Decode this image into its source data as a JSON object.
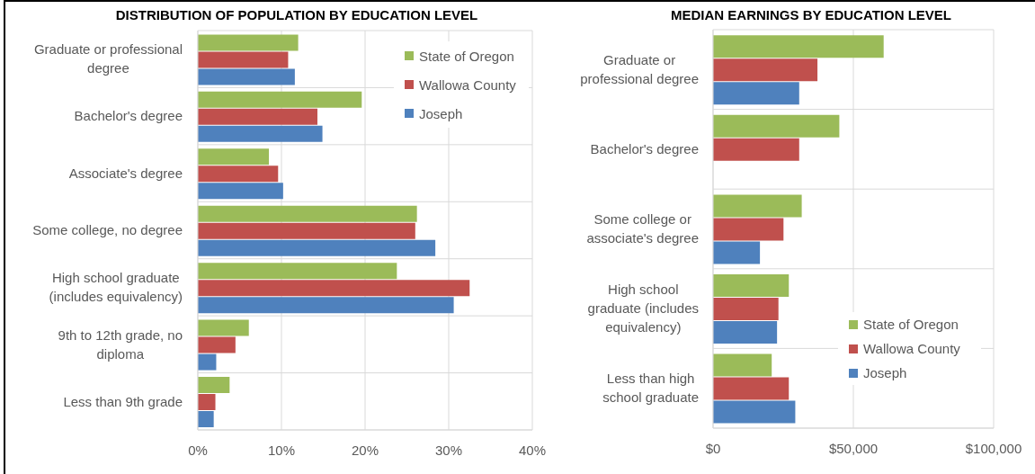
{
  "chart_data": [
    {
      "type": "bar",
      "orientation": "horizontal",
      "title": "DISTRIBUTION OF POPULATION BY EDUCATION LEVEL",
      "categories": [
        "Graduate or professional degree",
        "Bachelor's degree",
        "Associate's degree",
        "Some college, no degree",
        "High school graduate (includes equivalency)",
        "9th to 12th grade, no diploma",
        "Less than 9th grade"
      ],
      "series": [
        {
          "name": "State of Oregon",
          "color": "#9bbb59",
          "values": [
            12.0,
            19.6,
            8.5,
            26.2,
            23.8,
            6.1,
            3.8
          ]
        },
        {
          "name": "Wallowa County",
          "color": "#c0504d",
          "values": [
            10.8,
            14.3,
            9.6,
            26.0,
            32.5,
            4.5,
            2.1
          ]
        },
        {
          "name": "Joseph",
          "color": "#4f81bd",
          "values": [
            11.6,
            14.9,
            10.2,
            28.4,
            30.6,
            2.2,
            1.9
          ]
        }
      ],
      "xlim": [
        0,
        40
      ],
      "xticks": [
        {
          "value": 0,
          "label": "0%"
        },
        {
          "value": 10,
          "label": "10%"
        },
        {
          "value": 20,
          "label": "20%"
        },
        {
          "value": 30,
          "label": "30%"
        },
        {
          "value": 40,
          "label": "40%"
        }
      ],
      "grid": true,
      "legend": "top right"
    },
    {
      "type": "bar",
      "orientation": "horizontal",
      "title": "MEDIAN EARNINGS BY EDUCATION LEVEL",
      "categories": [
        "Graduate or professional degree",
        "Bachelor's degree",
        "Some college or associate's degree",
        "High school graduate (includes equivalency)",
        "Less than high school graduate"
      ],
      "series": [
        {
          "name": "State of Oregon",
          "color": "#9bbb59",
          "values": [
            60800,
            45000,
            31600,
            27000,
            20900
          ]
        },
        {
          "name": "Wallowa County",
          "color": "#c0504d",
          "values": [
            37200,
            30700,
            25100,
            23300,
            27000
          ]
        },
        {
          "name": "Joseph",
          "color": "#4f81bd",
          "values": [
            30700,
            null,
            16700,
            22800,
            29300
          ]
        }
      ],
      "xlim": [
        0,
        100000
      ],
      "xticks": [
        {
          "value": 0,
          "label": "$0"
        },
        {
          "value": 50000,
          "label": "$50,000"
        },
        {
          "value": 100000,
          "label": "$100,000"
        }
      ],
      "grid": true,
      "legend": "bottom right"
    }
  ]
}
